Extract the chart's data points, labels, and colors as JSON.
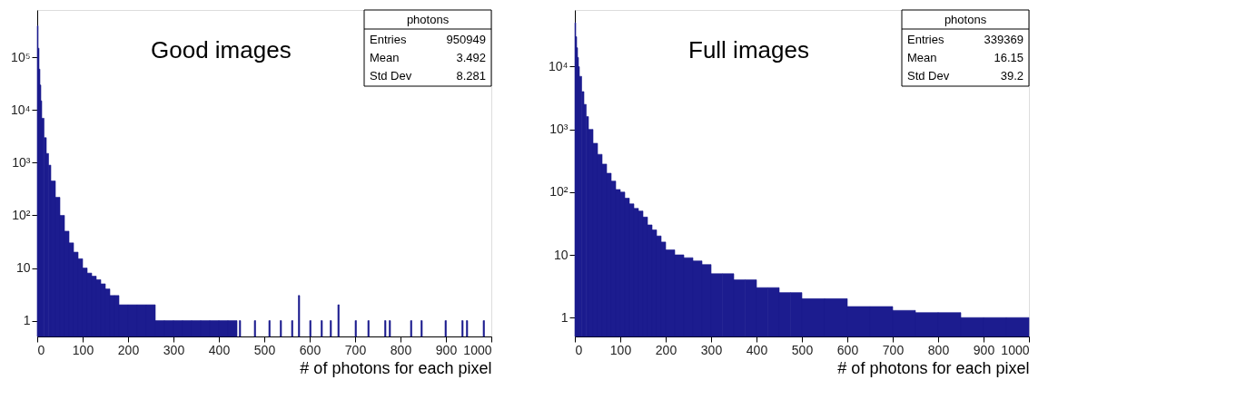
{
  "chart_data": [
    {
      "type": "histogram",
      "title": "Good images",
      "xlabel": "# of photons for each pixel",
      "color": "#1c1c8f",
      "log": "y",
      "grid": false,
      "annotations": [
        "photons",
        "Entries",
        "950949",
        "Mean",
        "3.492",
        "Std Dev",
        "8.281"
      ],
      "bins": [
        0,
        2,
        4,
        6,
        8,
        10,
        15,
        20,
        25,
        30,
        40,
        50,
        60,
        70,
        80,
        90,
        100,
        110,
        120,
        130,
        140,
        150,
        160,
        170,
        180,
        200,
        220,
        240,
        260,
        280,
        300,
        320,
        340,
        360,
        380,
        400,
        420,
        440,
        445,
        448,
        478,
        481,
        510,
        513,
        535,
        538,
        560,
        563,
        575,
        578,
        600,
        603,
        625,
        628,
        645,
        648,
        662,
        665,
        700,
        703,
        728,
        731,
        765,
        768,
        775,
        778,
        822,
        825,
        845,
        848,
        898,
        901,
        935,
        938,
        945,
        948,
        982,
        985
      ],
      "values": [
        400000,
        150000,
        60000,
        30000,
        15000,
        7000,
        3000,
        1500,
        900,
        450,
        220,
        100,
        50,
        30,
        20,
        15,
        10,
        8,
        7,
        6,
        5,
        4,
        3,
        3,
        2,
        2,
        2,
        2,
        1,
        1,
        1,
        1,
        1,
        1,
        1,
        1,
        1,
        null,
        1,
        null,
        1,
        null,
        1,
        null,
        1,
        null,
        1,
        null,
        3,
        null,
        1,
        null,
        1,
        null,
        1,
        null,
        2,
        null,
        1,
        null,
        1,
        null,
        1,
        null,
        1,
        null,
        1,
        null,
        1,
        null,
        1,
        null,
        1,
        null,
        1,
        null,
        1
      ],
      "xlim": [
        0,
        1000
      ],
      "xticks": [
        0,
        100,
        200,
        300,
        400,
        500,
        600,
        700,
        800,
        900,
        1000
      ],
      "ylim": [
        0.5,
        800000
      ],
      "yticks": [
        1,
        10,
        {
          "value": 100,
          "label": "10²"
        },
        {
          "value": 1000,
          "label": "10³"
        },
        {
          "value": 10000,
          "label": "10⁴"
        },
        {
          "value": 100000,
          "label": "10⁵"
        }
      ]
    },
    {
      "type": "histogram",
      "title": "Full images",
      "xlabel": "# of photons for each pixel",
      "color": "#1c1c8f",
      "log": "y",
      "grid": false,
      "annotations": [
        "photons",
        "Entries",
        "339369",
        "Mean",
        "16.15",
        "Std Dev",
        "39.2"
      ],
      "bins": [
        0,
        2,
        4,
        6,
        8,
        10,
        15,
        20,
        25,
        30,
        40,
        50,
        60,
        70,
        80,
        90,
        100,
        110,
        120,
        130,
        140,
        150,
        160,
        170,
        180,
        190,
        200,
        220,
        240,
        260,
        280,
        300,
        325,
        350,
        375,
        400,
        425,
        450,
        475,
        500,
        550,
        600,
        650,
        700,
        750,
        800,
        850,
        900,
        950,
        1000
      ],
      "values": [
        50000,
        30000,
        20000,
        14000,
        10000,
        7000,
        4000,
        2500,
        1600,
        1000,
        600,
        400,
        280,
        200,
        150,
        110,
        100,
        80,
        65,
        55,
        50,
        40,
        30,
        25,
        20,
        16,
        12,
        10,
        9,
        8,
        7,
        5,
        5,
        4,
        4,
        3,
        3,
        2.5,
        2.5,
        2,
        2,
        1.5,
        1.5,
        1.3,
        1.2,
        1.2,
        1,
        1,
        1
      ],
      "xlim": [
        0,
        1000
      ],
      "xticks": [
        0,
        100,
        200,
        300,
        400,
        500,
        600,
        700,
        800,
        900,
        1000
      ],
      "ylim": [
        0.5,
        80000
      ],
      "yticks": [
        1,
        10,
        {
          "value": 100,
          "label": "10²"
        },
        {
          "value": 1000,
          "label": "10³"
        },
        {
          "value": 10000,
          "label": "10⁴"
        }
      ]
    }
  ]
}
